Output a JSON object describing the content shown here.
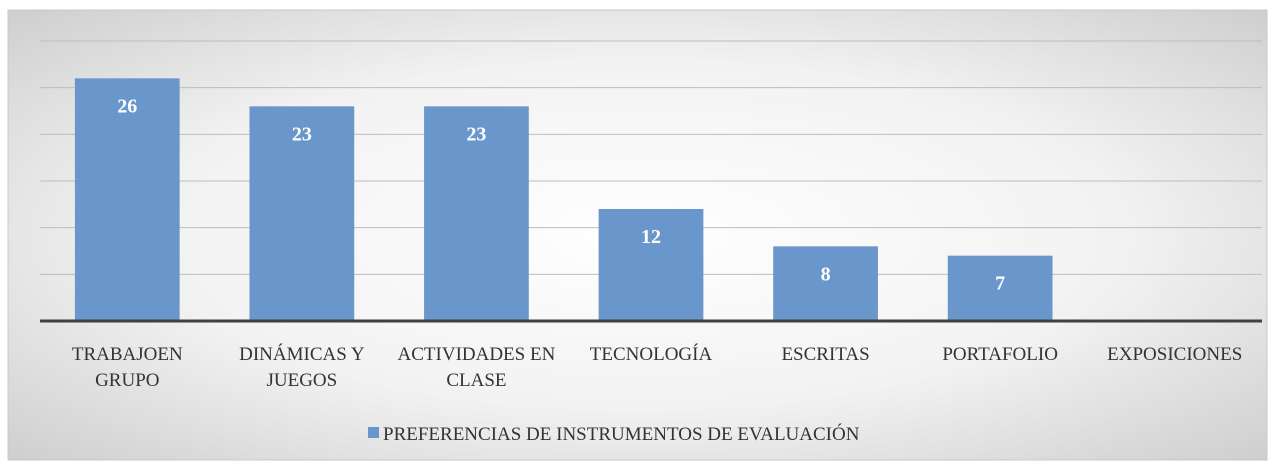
{
  "chart_data": {
    "type": "bar",
    "categories": [
      "TRABAJOEN GRUPO",
      "DINÁMICAS Y JUEGOS",
      "ACTIVIDADES EN CLASE",
      "TECNOLOGÍA",
      "ESCRITAS",
      "PORTAFOLIO",
      "EXPOSICIONES"
    ],
    "series": [
      {
        "name": "PREFERENCIAS DE INSTRUMENTOS DE EVALUACIÓN",
        "color": "#6a97cb",
        "values": [
          26,
          23,
          23,
          12,
          8,
          7,
          null
        ]
      }
    ],
    "ylim": [
      0,
      30
    ],
    "yticks": [
      0,
      5,
      10,
      15,
      20,
      25,
      30
    ],
    "grid": true,
    "legend": "bottom"
  }
}
